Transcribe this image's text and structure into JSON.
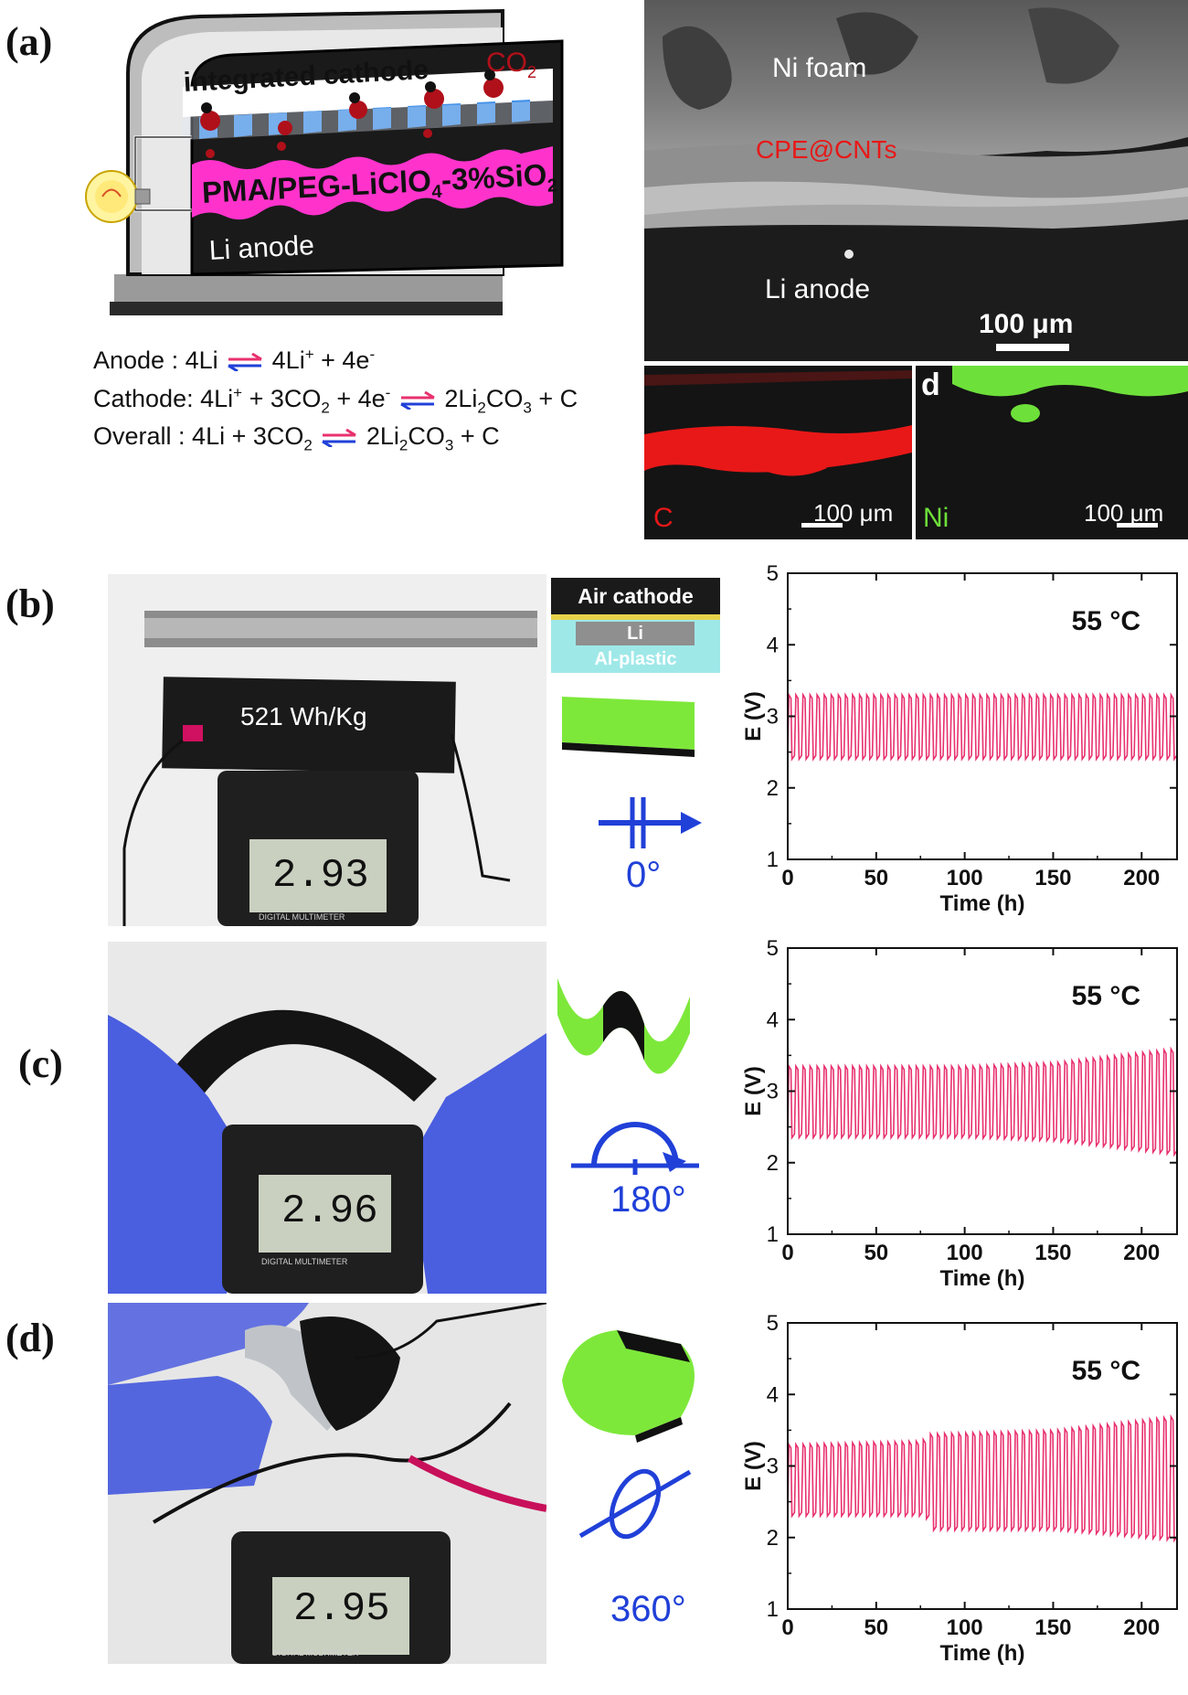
{
  "panels": {
    "a": "(a)",
    "b": "(b)",
    "c": "(c)",
    "d": "(d)"
  },
  "schematic": {
    "cathode_label": "integrated cathode",
    "co2_label": "CO",
    "co2_sub": "2",
    "electrolyte_label_pre": "PMA/PEG-LiClO",
    "electrolyte_sub": "4",
    "electrolyte_label_post": "-3%SiO",
    "electrolyte_sub2": "2",
    "anode_label": "Li anode"
  },
  "equations": {
    "anode": {
      "label": "Anode",
      "sep": " : ",
      "left": "4Li",
      "right_a": "4Li",
      "right_sup": "+",
      "right_b": " + 4e",
      "right_sup2": "-"
    },
    "cathode": {
      "label": "Cathode",
      "sep": ": ",
      "l1": "4Li",
      "l1_sup": "+",
      "l2": " + 3CO",
      "l2_sub": "2",
      "l3": " + 4e",
      "l3_sup": "-",
      "r1": "2Li",
      "r1_sub": "2",
      "r2": "CO",
      "r2_sub": "3",
      "r3": " + C"
    },
    "overall": {
      "label": "Overall",
      "sep": " : ",
      "l1": "4Li + 3CO",
      "l1_sub": "2",
      "r1": "2Li",
      "r1_sub": "2",
      "r2": "CO",
      "r2_sub": "3",
      "r3": " + C"
    }
  },
  "sem": {
    "top_label": "Ni foam",
    "mid_label": "CPE@CNTs",
    "bottom_label": "Li anode",
    "scale": "100 μm"
  },
  "eds": {
    "c_label": "C",
    "c_scale": "100 μm",
    "d_tag": "d",
    "ni_label": "Ni",
    "ni_scale": "100 μm"
  },
  "photos": {
    "energy_density": "521 Wh/Kg",
    "meter_b": "2.93",
    "meter_c": "2.96",
    "meter_d": "2.95",
    "meter_caption": "DIGITAL MULTIMETER"
  },
  "stack": {
    "top": "Air cathode",
    "mid": "Li",
    "bottom": "Al-plastic"
  },
  "angles": {
    "b": "0°",
    "c": "180°",
    "d": "360°"
  },
  "colors": {
    "curve": "#e8316e",
    "accent_blue": "#2040d8",
    "green": "#7de83a",
    "pink_layer": "#ff33cc",
    "blue_layer": "#3f8fe8"
  },
  "chart_data": [
    {
      "type": "line",
      "panel": "b",
      "annotation": "55 °C",
      "xlabel": "Time (h)",
      "ylabel": "E (V)",
      "xlim": [
        0,
        220
      ],
      "ylim": [
        1,
        5
      ],
      "xticks": [
        "0",
        "50",
        "100",
        "150",
        "200"
      ],
      "yticks": [
        "1",
        "2",
        "3",
        "4",
        "5"
      ],
      "cycles": 55,
      "charge_voltage": [
        [
          0,
          3.3
        ],
        [
          220,
          3.3
        ]
      ],
      "discharge_voltage": [
        [
          0,
          2.4
        ],
        [
          220,
          2.4
        ]
      ]
    },
    {
      "type": "line",
      "panel": "c",
      "annotation": "55 °C",
      "xlabel": "Time (h)",
      "ylabel": "E (V)",
      "xlim": [
        0,
        220
      ],
      "ylim": [
        1,
        5
      ],
      "xticks": [
        "0",
        "50",
        "100",
        "150",
        "200"
      ],
      "yticks": [
        "1",
        "2",
        "3",
        "4",
        "5"
      ],
      "cycles": 55,
      "charge_voltage": [
        [
          0,
          3.35
        ],
        [
          100,
          3.35
        ],
        [
          150,
          3.4
        ],
        [
          220,
          3.6
        ]
      ],
      "discharge_voltage": [
        [
          0,
          2.35
        ],
        [
          100,
          2.35
        ],
        [
          150,
          2.3
        ],
        [
          220,
          2.1
        ]
      ]
    },
    {
      "type": "line",
      "panel": "d",
      "annotation": "55 °C",
      "xlabel": "Time (h)",
      "ylabel": "E (V)",
      "xlim": [
        0,
        220
      ],
      "ylim": [
        1,
        5
      ],
      "xticks": [
        "0",
        "50",
        "100",
        "150",
        "200"
      ],
      "yticks": [
        "1",
        "2",
        "3",
        "4",
        "5"
      ],
      "cycles": 55,
      "charge_voltage": [
        [
          0,
          3.3
        ],
        [
          75,
          3.35
        ],
        [
          80,
          3.45
        ],
        [
          150,
          3.5
        ],
        [
          220,
          3.7
        ]
      ],
      "discharge_voltage": [
        [
          0,
          2.3
        ],
        [
          75,
          2.3
        ],
        [
          80,
          2.1
        ],
        [
          150,
          2.1
        ],
        [
          220,
          1.95
        ]
      ]
    }
  ]
}
